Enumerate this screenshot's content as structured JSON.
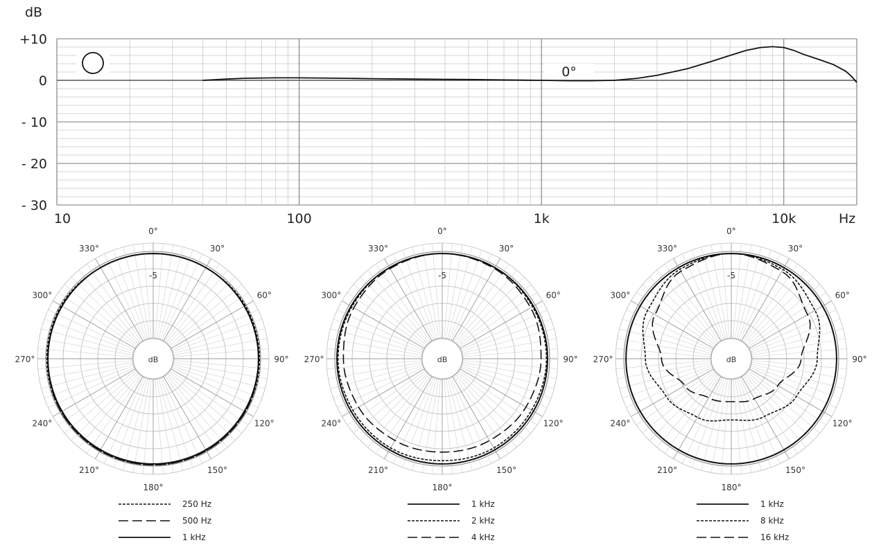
{
  "chart_data": [
    {
      "type": "line",
      "y_unit": "dB",
      "x_unit": "Hz",
      "x_scale": "log",
      "xlim": [
        10,
        20000
      ],
      "ylim": [
        -30,
        10
      ],
      "y_ticks": [
        {
          "value": 10,
          "label": "+10"
        },
        {
          "value": 0,
          "label": "0"
        },
        {
          "value": -10,
          "label": "- 10"
        },
        {
          "value": -20,
          "label": "- 20"
        },
        {
          "value": -30,
          "label": "- 30"
        }
      ],
      "x_ticks": [
        {
          "value": 10,
          "label": "10"
        },
        {
          "value": 100,
          "label": "100"
        },
        {
          "value": 1000,
          "label": "1k"
        },
        {
          "value": 10000,
          "label": "10k"
        }
      ],
      "grid": true,
      "pattern_icon": "omnidirectional-circle-icon",
      "series": [
        {
          "name": "0°",
          "x": [
            40,
            50,
            60,
            80,
            100,
            150,
            200,
            300,
            500,
            700,
            1000,
            1300,
            1600,
            2000,
            2500,
            3000,
            4000,
            5000,
            6000,
            7000,
            8000,
            9000,
            10000,
            11000,
            12000,
            14000,
            16000,
            18000,
            19000,
            20000
          ],
          "y": [
            0,
            0.3,
            0.5,
            0.6,
            0.6,
            0.5,
            0.4,
            0.3,
            0.2,
            0.1,
            0,
            -0.1,
            -0.1,
            0,
            0.5,
            1.2,
            2.8,
            4.5,
            6,
            7.2,
            7.9,
            8.1,
            7.9,
            7.2,
            6.3,
            5,
            3.8,
            2.2,
            1,
            -0.5
          ]
        }
      ]
    },
    {
      "type": "polar",
      "unit_label": "dB",
      "ring_label": "-5",
      "angle_labels": [
        "0°",
        "30°",
        "60°",
        "90°",
        "120°",
        "150°",
        "180°",
        "210°",
        "240°",
        "270°",
        "300°",
        "330°"
      ],
      "angles": [
        0,
        30,
        60,
        90,
        120,
        150,
        180,
        210,
        240,
        270,
        300,
        330
      ],
      "series": [
        {
          "name": "250 Hz",
          "dash": "dotted",
          "radius": [
            0.98,
            0.98,
            0.99,
            0.99,
            0.99,
            0.99,
            0.99,
            0.99,
            0.99,
            0.99,
            0.99,
            0.98
          ]
        },
        {
          "name": "500 Hz",
          "dash": "dashed",
          "radius": [
            0.98,
            0.98,
            0.98,
            0.98,
            0.99,
            0.99,
            0.99,
            0.99,
            0.99,
            0.98,
            0.98,
            0.98
          ]
        },
        {
          "name": "1 kHz",
          "dash": "solid",
          "radius": [
            0.98,
            0.98,
            0.98,
            0.98,
            0.98,
            0.98,
            0.98,
            0.98,
            0.98,
            0.98,
            0.98,
            0.98
          ]
        }
      ]
    },
    {
      "type": "polar",
      "unit_label": "dB",
      "ring_label": "-5",
      "angle_labels": [
        "0°",
        "30°",
        "60°",
        "90°",
        "120°",
        "150°",
        "180°",
        "210°",
        "240°",
        "270°",
        "300°",
        "330°"
      ],
      "angles": [
        0,
        30,
        60,
        90,
        120,
        150,
        180,
        210,
        240,
        270,
        300,
        330
      ],
      "series": [
        {
          "name": "1 kHz",
          "dash": "solid",
          "radius": [
            0.98,
            0.98,
            0.98,
            0.98,
            0.98,
            0.98,
            0.98,
            0.98,
            0.98,
            0.98,
            0.98,
            0.98
          ]
        },
        {
          "name": "2 kHz",
          "dash": "dotted",
          "radius": [
            0.98,
            0.98,
            0.97,
            0.97,
            0.96,
            0.96,
            0.95,
            0.96,
            0.96,
            0.97,
            0.97,
            0.98
          ]
        },
        {
          "name": "4 kHz",
          "dash": "dashed",
          "radius": [
            0.98,
            0.97,
            0.95,
            0.92,
            0.9,
            0.88,
            0.87,
            0.88,
            0.9,
            0.92,
            0.95,
            0.97
          ]
        }
      ]
    },
    {
      "type": "polar",
      "unit_label": "dB",
      "ring_label": "-5",
      "angle_labels": [
        "0°",
        "30°",
        "60°",
        "90°",
        "120°",
        "150°",
        "180°",
        "210°",
        "240°",
        "270°",
        "300°",
        "330°"
      ],
      "angles": [
        0,
        30,
        60,
        90,
        120,
        150,
        180,
        210,
        240,
        270,
        300,
        330
      ],
      "series": [
        {
          "name": "1 kHz",
          "dash": "solid",
          "radius": [
            0.98,
            0.98,
            0.98,
            0.98,
            0.98,
            0.98,
            0.98,
            0.98,
            0.98,
            0.98,
            0.98,
            0.98
          ]
        },
        {
          "name": "8 kHz",
          "dash": "dotted",
          "radius": [
            0.98,
            0.96,
            0.9,
            0.8,
            0.7,
            0.62,
            0.57,
            0.63,
            0.7,
            0.8,
            0.9,
            0.96
          ]
        },
        {
          "name": "16 kHz",
          "dash": "dashed",
          "radius": [
            0.98,
            0.94,
            0.82,
            0.65,
            0.5,
            0.43,
            0.4,
            0.42,
            0.5,
            0.65,
            0.82,
            0.94
          ]
        }
      ]
    }
  ]
}
